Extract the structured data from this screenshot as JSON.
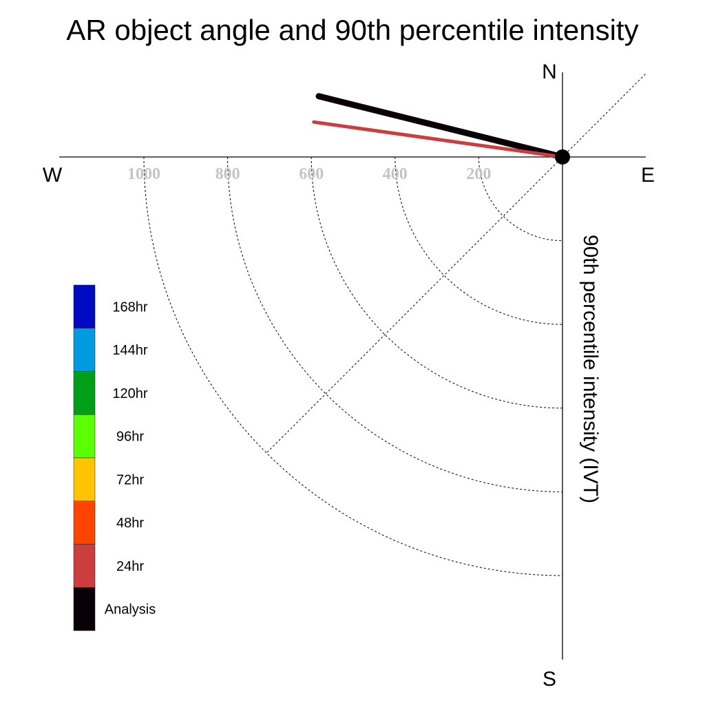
{
  "chart_data": {
    "type": "polar-quadrant",
    "title": "AR object angle and 90th percentile intensity",
    "radial_axis_label": "90th percentile intensity (IVT)",
    "compass": {
      "north": "N",
      "east": "E",
      "south": "S",
      "west": "W"
    },
    "radial_ticks": [
      200,
      400,
      600,
      800,
      1000
    ],
    "radial_tick_labels": [
      "200",
      "400",
      "600",
      "800",
      "1000"
    ],
    "radial_max": 1200,
    "series": [
      {
        "name": "Analysis",
        "angle_deg": 166,
        "intensity": 600,
        "color": "#0a0008"
      },
      {
        "name": "24hr",
        "angle_deg": 172,
        "intensity": 600,
        "color": "#cc3d3d"
      }
    ],
    "legend": {
      "placement": "lower-left",
      "items": [
        {
          "label": "168hr",
          "color": "#000ac4"
        },
        {
          "label": "144hr",
          "color": "#009ae0"
        },
        {
          "label": "120hr",
          "color": "#009e19"
        },
        {
          "label": "96hr",
          "color": "#5bff03"
        },
        {
          "label": "72hr",
          "color": "#ffc400"
        },
        {
          "label": "48hr",
          "color": "#ff4400"
        },
        {
          "label": "24hr",
          "color": "#cc3d3d"
        },
        {
          "label": "Analysis",
          "color": "#0a0008"
        }
      ]
    }
  }
}
